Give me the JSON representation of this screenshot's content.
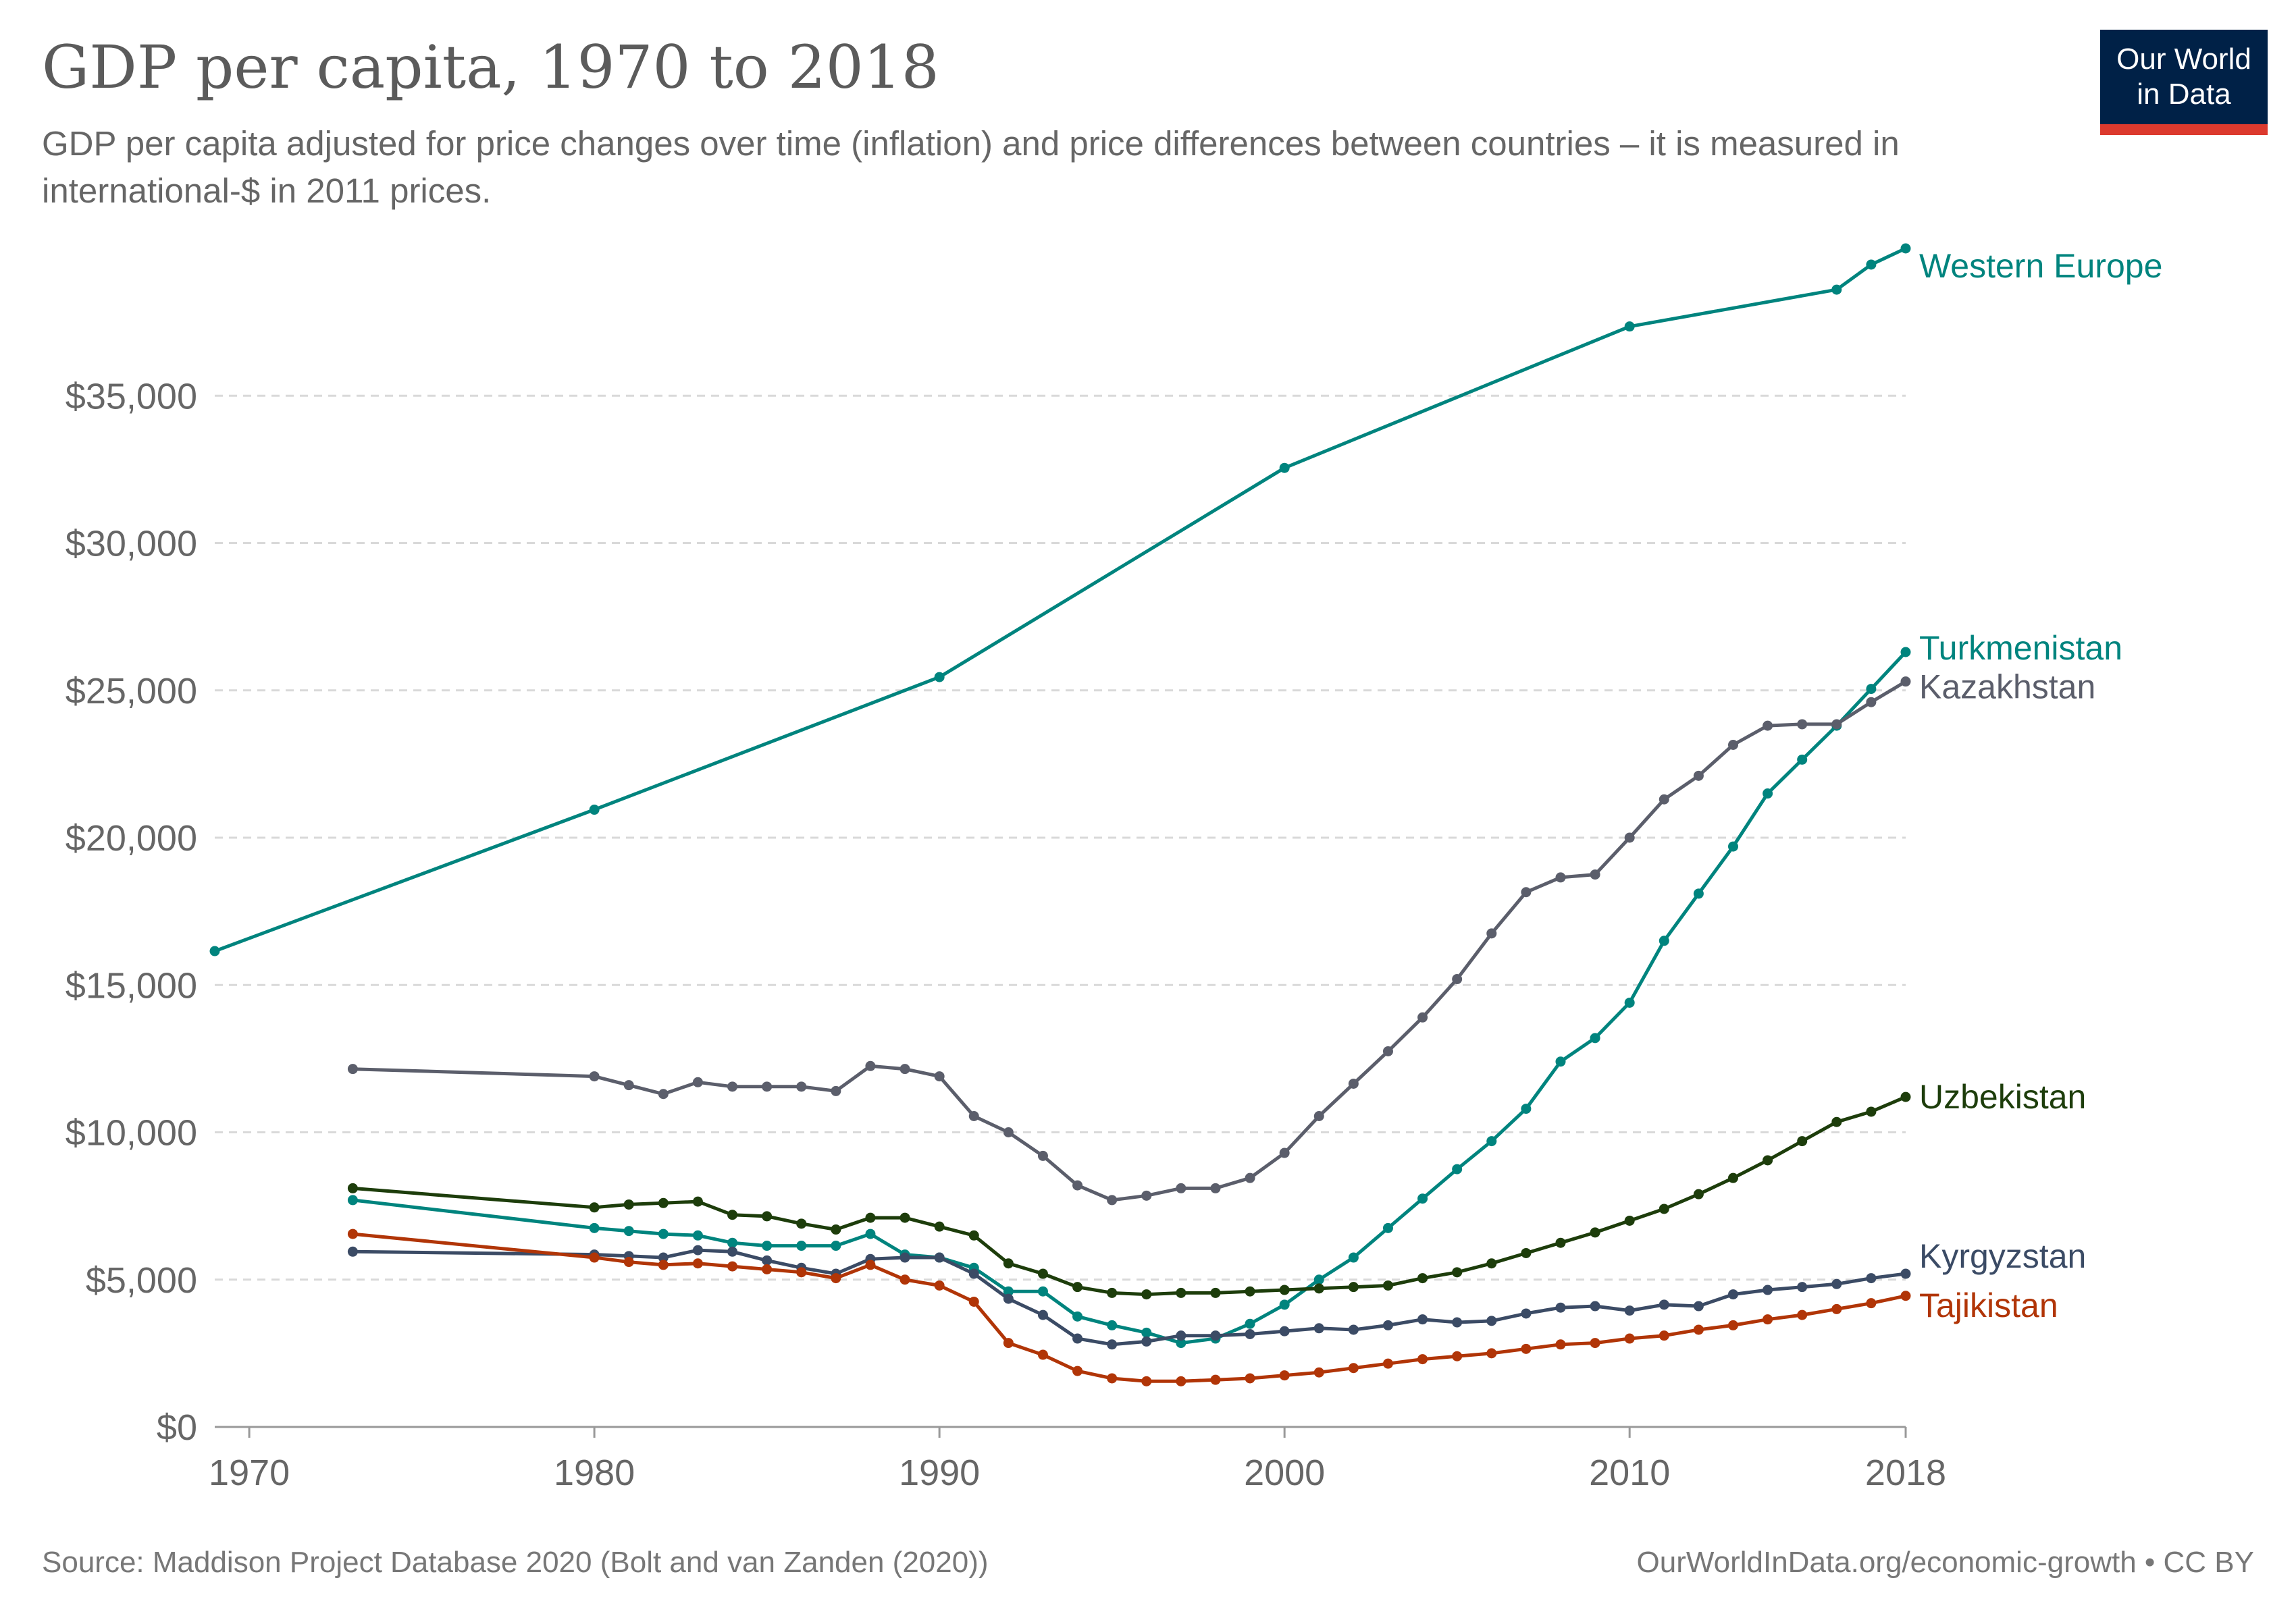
{
  "title": "GDP per capita, 1970 to 2018",
  "subtitle": "GDP per capita adjusted for price changes over time (inflation) and price differences between countries – it is measured in international-$ in 2011 prices.",
  "logo": {
    "line1": "Our World",
    "line2": "in Data",
    "bg": "#002147",
    "accent": "#dc3a2e"
  },
  "footer": {
    "source": "Source: Maddison Project Database 2020 (Bolt and van Zanden (2020))",
    "credit": "OurWorldInData.org/economic-growth • CC BY"
  },
  "chart_data": {
    "type": "line",
    "xlim": [
      1969,
      2018
    ],
    "ylim": [
      0,
      40000
    ],
    "x_ticks": [
      1970,
      1980,
      1990,
      2000,
      2010,
      2018
    ],
    "y_ticks": [
      0,
      5000,
      10000,
      15000,
      20000,
      25000,
      30000,
      35000
    ],
    "y_tick_labels": [
      "$0",
      "$5,000",
      "$10,000",
      "$15,000",
      "$20,000",
      "$25,000",
      "$30,000",
      "$35,000"
    ],
    "grid": "horizontal dashed",
    "series": [
      {
        "name": "Western Europe",
        "color": "#00847e",
        "x": [
          1969,
          1980,
          1990,
          2000,
          2010,
          2016,
          2017,
          2018
        ],
        "y": [
          16150,
          20950,
          25450,
          32550,
          37350,
          38600,
          39450,
          40000
        ]
      },
      {
        "name": "Turkmenistan",
        "color": "#00847e",
        "x": [
          1973,
          1980,
          1981,
          1982,
          1983,
          1984,
          1985,
          1986,
          1987,
          1988,
          1989,
          1990,
          1991,
          1992,
          1993,
          1994,
          1995,
          1996,
          1997,
          1998,
          1999,
          2000,
          2001,
          2002,
          2003,
          2004,
          2005,
          2006,
          2007,
          2008,
          2009,
          2010,
          2011,
          2012,
          2013,
          2014,
          2015,
          2016,
          2017,
          2018
        ],
        "y": [
          7700,
          6750,
          6650,
          6550,
          6500,
          6250,
          6150,
          6150,
          6150,
          6550,
          5850,
          5750,
          5400,
          4600,
          4600,
          3750,
          3450,
          3200,
          2850,
          3000,
          3500,
          4150,
          5000,
          5750,
          6750,
          7750,
          8750,
          9700,
          10800,
          12400,
          13200,
          14400,
          16500,
          18100,
          19700,
          21500,
          22650,
          23800,
          25050,
          26300
        ]
      },
      {
        "name": "Kazakhstan",
        "color": "#5b5e6b",
        "x": [
          1973,
          1980,
          1981,
          1982,
          1983,
          1984,
          1985,
          1986,
          1987,
          1988,
          1989,
          1990,
          1991,
          1992,
          1993,
          1994,
          1995,
          1996,
          1997,
          1998,
          1999,
          2000,
          2001,
          2002,
          2003,
          2004,
          2005,
          2006,
          2007,
          2008,
          2009,
          2010,
          2011,
          2012,
          2013,
          2014,
          2015,
          2016,
          2017,
          2018
        ],
        "y": [
          12150,
          11900,
          11600,
          11300,
          11700,
          11550,
          11550,
          11550,
          11400,
          12250,
          12150,
          11900,
          10550,
          10000,
          9200,
          8200,
          7700,
          7850,
          8100,
          8100,
          8450,
          9300,
          10550,
          11650,
          12750,
          13900,
          15200,
          16750,
          18150,
          18650,
          18750,
          20000,
          21300,
          22100,
          23150,
          23800,
          23850,
          23850,
          24600,
          25300
        ]
      },
      {
        "name": "Uzbekistan",
        "color": "#1d3d0b",
        "x": [
          1973,
          1980,
          1981,
          1982,
          1983,
          1984,
          1985,
          1986,
          1987,
          1988,
          1989,
          1990,
          1991,
          1992,
          1993,
          1994,
          1995,
          1996,
          1997,
          1998,
          1999,
          2000,
          2001,
          2002,
          2003,
          2004,
          2005,
          2006,
          2007,
          2008,
          2009,
          2010,
          2011,
          2012,
          2013,
          2014,
          2015,
          2016,
          2017,
          2018
        ],
        "y": [
          8100,
          7450,
          7550,
          7600,
          7650,
          7200,
          7150,
          6900,
          6700,
          7100,
          7100,
          6800,
          6500,
          5550,
          5200,
          4750,
          4550,
          4500,
          4550,
          4550,
          4600,
          4650,
          4700,
          4750,
          4800,
          5050,
          5250,
          5550,
          5900,
          6250,
          6600,
          7000,
          7400,
          7900,
          8450,
          9050,
          9700,
          10350,
          10700,
          11200
        ]
      },
      {
        "name": "Kyrgyzstan",
        "color": "#3b4b65",
        "x": [
          1973,
          1980,
          1981,
          1982,
          1983,
          1984,
          1985,
          1986,
          1987,
          1988,
          1989,
          1990,
          1991,
          1992,
          1993,
          1994,
          1995,
          1996,
          1997,
          1998,
          1999,
          2000,
          2001,
          2002,
          2003,
          2004,
          2005,
          2006,
          2007,
          2008,
          2009,
          2010,
          2011,
          2012,
          2013,
          2014,
          2015,
          2016,
          2017,
          2018
        ],
        "y": [
          5950,
          5850,
          5800,
          5750,
          6000,
          5950,
          5650,
          5400,
          5200,
          5700,
          5750,
          5750,
          5200,
          4350,
          3800,
          3000,
          2800,
          2900,
          3100,
          3100,
          3150,
          3250,
          3350,
          3300,
          3450,
          3650,
          3550,
          3600,
          3850,
          4050,
          4100,
          3950,
          4150,
          4100,
          4500,
          4650,
          4750,
          4850,
          5050,
          5200
        ]
      },
      {
        "name": "Tajikistan",
        "color": "#b13507",
        "x": [
          1973,
          1980,
          1981,
          1982,
          1983,
          1984,
          1985,
          1986,
          1987,
          1988,
          1989,
          1990,
          1991,
          1992,
          1993,
          1994,
          1995,
          1996,
          1997,
          1998,
          1999,
          2000,
          2001,
          2002,
          2003,
          2004,
          2005,
          2006,
          2007,
          2008,
          2009,
          2010,
          2011,
          2012,
          2013,
          2014,
          2015,
          2016,
          2017,
          2018
        ],
        "y": [
          6550,
          5750,
          5600,
          5500,
          5550,
          5450,
          5350,
          5250,
          5050,
          5500,
          5000,
          4800,
          4250,
          2850,
          2450,
          1900,
          1650,
          1550,
          1550,
          1600,
          1650,
          1750,
          1850,
          2000,
          2150,
          2300,
          2400,
          2500,
          2650,
          2800,
          2850,
          3000,
          3100,
          3300,
          3450,
          3650,
          3800,
          4000,
          4200,
          4450
        ]
      }
    ],
    "legend": "end-of-line labels"
  }
}
